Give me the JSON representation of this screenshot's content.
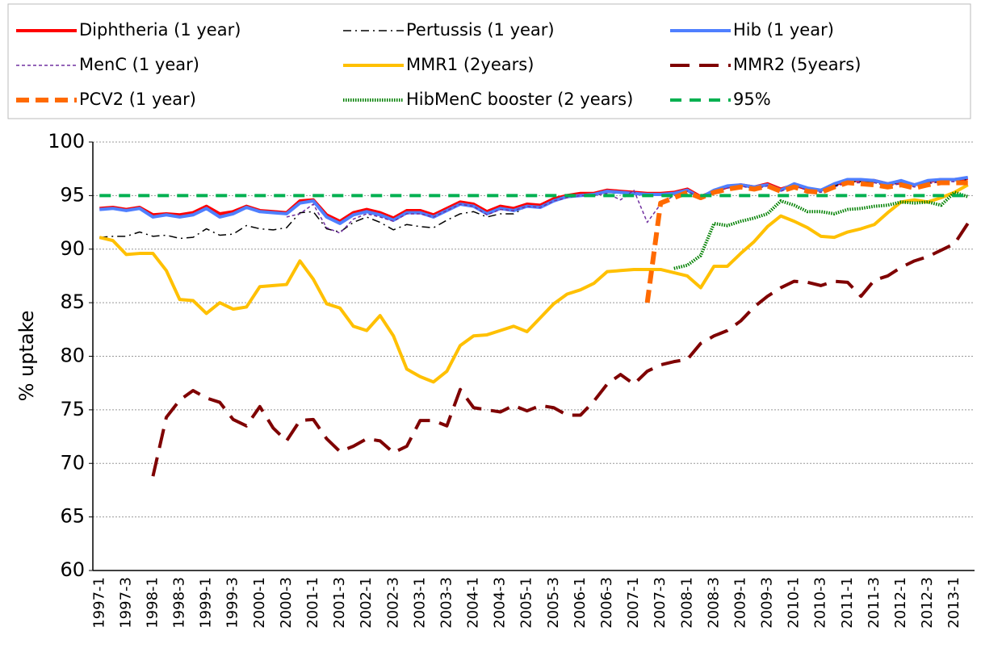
{
  "chart_data": {
    "type": "line",
    "y_label": "% uptake",
    "ylim": [
      60,
      100
    ],
    "yticks": [
      60,
      65,
      70,
      75,
      80,
      85,
      90,
      95,
      100
    ],
    "grid": true,
    "categories": [
      "1997-1",
      null,
      "1997-3",
      null,
      "1998-1",
      null,
      "1998-3",
      null,
      "1999-1",
      null,
      "1999-3",
      null,
      "2000-1",
      null,
      "2000-3",
      null,
      "2001-1",
      null,
      "2001-3",
      null,
      "2002-1",
      null,
      "2002-3",
      null,
      "2003-1",
      null,
      "2003-3",
      null,
      "2004-1",
      null,
      "2004-3",
      null,
      "2005-1",
      null,
      "2005-3",
      null,
      "2006-1",
      null,
      "2006-3",
      null,
      "2007-1",
      null,
      "2007-3",
      null,
      "2008-1",
      null,
      "2008-3",
      null,
      "2009-1",
      null,
      "2009-3",
      null,
      "2010-1",
      null,
      "2010-3",
      null,
      "2011-1",
      null,
      "2011-3",
      null,
      "2012-1",
      null,
      "2012-3",
      null,
      "2013-1",
      null
    ],
    "series": [
      {
        "name": "Diphtheria (1 year)",
        "color": "#ff0000",
        "dash": "solid",
        "values": [
          93.8,
          93.9,
          93.7,
          93.9,
          93.2,
          93.3,
          93.2,
          93.4,
          94.0,
          93.3,
          93.5,
          94.0,
          93.6,
          93.5,
          93.4,
          94.5,
          94.6,
          93.2,
          92.6,
          93.4,
          93.7,
          93.4,
          92.9,
          93.6,
          93.6,
          93.2,
          93.8,
          94.4,
          94.2,
          93.5,
          94.0,
          93.8,
          94.2,
          94.1,
          94.7,
          95.0,
          95.2,
          95.2,
          95.5,
          95.4,
          95.3,
          95.2,
          95.2,
          95.3,
          95.6,
          94.9,
          95.4,
          95.8,
          96.0,
          95.8,
          96.1,
          95.6,
          96.0,
          95.6,
          95.5,
          96.0,
          96.4,
          96.4,
          96.4,
          96.1,
          96.3,
          96.0,
          96.3,
          96.5,
          96.5,
          96.6
        ]
      },
      {
        "name": "Pertussis (1 year)",
        "color": "#000000",
        "dash": "dashdot",
        "values": [
          91.1,
          91.2,
          91.2,
          91.6,
          91.2,
          91.3,
          91.0,
          91.1,
          91.9,
          91.3,
          91.4,
          92.2,
          91.9,
          91.8,
          92.0,
          93.4,
          93.5,
          91.9,
          91.6,
          92.5,
          93.0,
          92.5,
          91.8,
          92.3,
          92.1,
          92.0,
          92.7,
          93.3,
          93.5,
          93.0,
          93.3,
          93.3,
          94.0,
          94.0,
          94.6,
          95.0,
          95.0,
          95.1,
          95.3,
          95.2,
          95.2,
          95.1,
          95.0,
          95.2,
          95.4,
          94.8,
          95.3,
          95.8,
          95.9,
          95.7,
          96.0,
          95.5,
          96.0,
          95.6,
          95.4,
          95.9,
          96.3,
          96.3,
          96.3,
          96.0,
          96.2,
          95.9,
          96.2,
          96.4,
          96.4,
          96.5
        ]
      },
      {
        "name": "Hib (1 year)",
        "color": "#4f7fff",
        "dash": "solid",
        "values": [
          93.7,
          93.8,
          93.6,
          93.8,
          93.0,
          93.2,
          93.0,
          93.2,
          93.8,
          93.0,
          93.3,
          93.9,
          93.5,
          93.4,
          93.3,
          94.3,
          94.5,
          93.0,
          92.4,
          93.2,
          93.5,
          93.2,
          92.7,
          93.4,
          93.4,
          93.0,
          93.6,
          94.2,
          94.0,
          93.3,
          93.8,
          93.6,
          94.0,
          93.9,
          94.5,
          94.9,
          95.0,
          95.1,
          95.4,
          95.3,
          95.2,
          95.1,
          95.1,
          95.2,
          95.5,
          94.8,
          95.5,
          95.9,
          96.0,
          95.8,
          96.0,
          95.5,
          96.1,
          95.7,
          95.5,
          96.1,
          96.5,
          96.5,
          96.4,
          96.1,
          96.4,
          96.0,
          96.4,
          96.5,
          96.5,
          96.7
        ]
      },
      {
        "name": "MenC (1 year)",
        "color": "#7030a0",
        "dash": "fine",
        "values": [
          null,
          null,
          null,
          null,
          null,
          null,
          null,
          null,
          null,
          null,
          null,
          null,
          null,
          null,
          93.0,
          93.3,
          94.2,
          92.0,
          91.5,
          92.8,
          93.3,
          93.0,
          92.6,
          93.3,
          93.3,
          93.0,
          93.6,
          94.2,
          94.0,
          93.2,
          93.7,
          93.6,
          94.0,
          93.9,
          94.5,
          94.8,
          95.0,
          95.0,
          95.2,
          94.6,
          95.5,
          92.5,
          94.2,
          95.0,
          95.4,
          94.8,
          95.3,
          95.7,
          95.9,
          95.6,
          95.9,
          95.4,
          95.9,
          95.5,
          95.3,
          95.8,
          96.2,
          96.2,
          96.2,
          95.9,
          96.1,
          95.8,
          96.1,
          96.3,
          96.3,
          96.4
        ]
      },
      {
        "name": "MMR1 (2years)",
        "color": "#ffc000",
        "dash": "solid",
        "values": [
          91.1,
          90.8,
          89.5,
          89.6,
          89.6,
          88.0,
          85.3,
          85.2,
          84.0,
          85.0,
          84.4,
          84.6,
          86.5,
          86.6,
          86.7,
          88.9,
          87.2,
          84.9,
          84.5,
          82.8,
          82.4,
          83.8,
          81.9,
          78.8,
          78.1,
          77.6,
          78.6,
          81.0,
          81.9,
          82.0,
          82.4,
          82.8,
          82.3,
          83.6,
          84.9,
          85.8,
          86.2,
          86.8,
          87.9,
          88.0,
          88.1,
          88.1,
          88.1,
          87.8,
          87.5,
          86.4,
          88.4,
          88.4,
          89.6,
          90.7,
          92.1,
          93.1,
          92.6,
          92.0,
          91.2,
          91.1,
          91.6,
          91.9,
          92.3,
          93.4,
          94.4,
          94.6,
          94.4,
          94.8,
          95.3,
          96.0
        ]
      },
      {
        "name": "MMR2 (5years)",
        "color": "#7f0000",
        "dash": "long",
        "values": [
          null,
          null,
          null,
          null,
          68.8,
          74.3,
          75.9,
          76.8,
          76.1,
          75.7,
          74.1,
          73.5,
          75.3,
          73.3,
          72.1,
          74.0,
          74.1,
          72.3,
          71.1,
          71.6,
          72.3,
          72.1,
          71.0,
          71.6,
          74.0,
          74.0,
          73.5,
          76.9,
          75.2,
          75.0,
          74.8,
          75.4,
          74.9,
          75.4,
          75.2,
          74.5,
          74.5,
          75.8,
          77.4,
          78.3,
          77.4,
          78.6,
          79.2,
          79.5,
          79.7,
          81.2,
          81.9,
          82.4,
          83.3,
          84.6,
          85.6,
          86.4,
          87.0,
          86.9,
          86.6,
          87.0,
          86.9,
          85.6,
          87.1,
          87.5,
          88.3,
          88.9,
          89.3,
          89.9,
          90.5,
          92.4
        ]
      },
      {
        "name": "PCV2 (1 year)",
        "color": "#ff6a00",
        "dash": "heavy",
        "values": [
          null,
          null,
          null,
          null,
          null,
          null,
          null,
          null,
          null,
          null,
          null,
          null,
          null,
          null,
          null,
          null,
          null,
          null,
          null,
          null,
          null,
          null,
          null,
          null,
          null,
          null,
          null,
          null,
          null,
          null,
          null,
          null,
          null,
          null,
          null,
          null,
          null,
          null,
          null,
          null,
          null,
          85.0,
          94.3,
          94.8,
          95.3,
          94.8,
          95.3,
          95.6,
          95.8,
          95.6,
          95.9,
          95.4,
          95.8,
          95.4,
          95.3,
          95.8,
          96.2,
          96.1,
          96.0,
          95.8,
          96.0,
          95.7,
          96.0,
          96.2,
          96.2,
          96.2
        ]
      },
      {
        "name": "HibMenC booster (2 years)",
        "color": "#008000",
        "dash": "dotted",
        "values": [
          null,
          null,
          null,
          null,
          null,
          null,
          null,
          null,
          null,
          null,
          null,
          null,
          null,
          null,
          null,
          null,
          null,
          null,
          null,
          null,
          null,
          null,
          null,
          null,
          null,
          null,
          null,
          null,
          null,
          null,
          null,
          null,
          null,
          null,
          null,
          null,
          null,
          null,
          null,
          null,
          null,
          null,
          null,
          88.2,
          88.5,
          89.4,
          92.4,
          92.2,
          92.6,
          92.9,
          93.3,
          94.5,
          94.1,
          93.5,
          93.5,
          93.3,
          93.7,
          93.8,
          94.0,
          94.1,
          94.4,
          94.3,
          94.4,
          94.1,
          95.3,
          94.9
        ]
      },
      {
        "name": "95%",
        "color": "#00b050",
        "dash": "dash",
        "values": [
          95,
          95,
          95,
          95,
          95,
          95,
          95,
          95,
          95,
          95,
          95,
          95,
          95,
          95,
          95,
          95,
          95,
          95,
          95,
          95,
          95,
          95,
          95,
          95,
          95,
          95,
          95,
          95,
          95,
          95,
          95,
          95,
          95,
          95,
          95,
          95,
          95,
          95,
          95,
          95,
          95,
          95,
          95,
          95,
          95,
          95,
          95,
          95,
          95,
          95,
          95,
          95,
          95,
          95,
          95,
          95,
          95,
          95,
          95,
          95,
          95,
          95,
          95,
          95,
          95,
          95
        ]
      }
    ]
  }
}
